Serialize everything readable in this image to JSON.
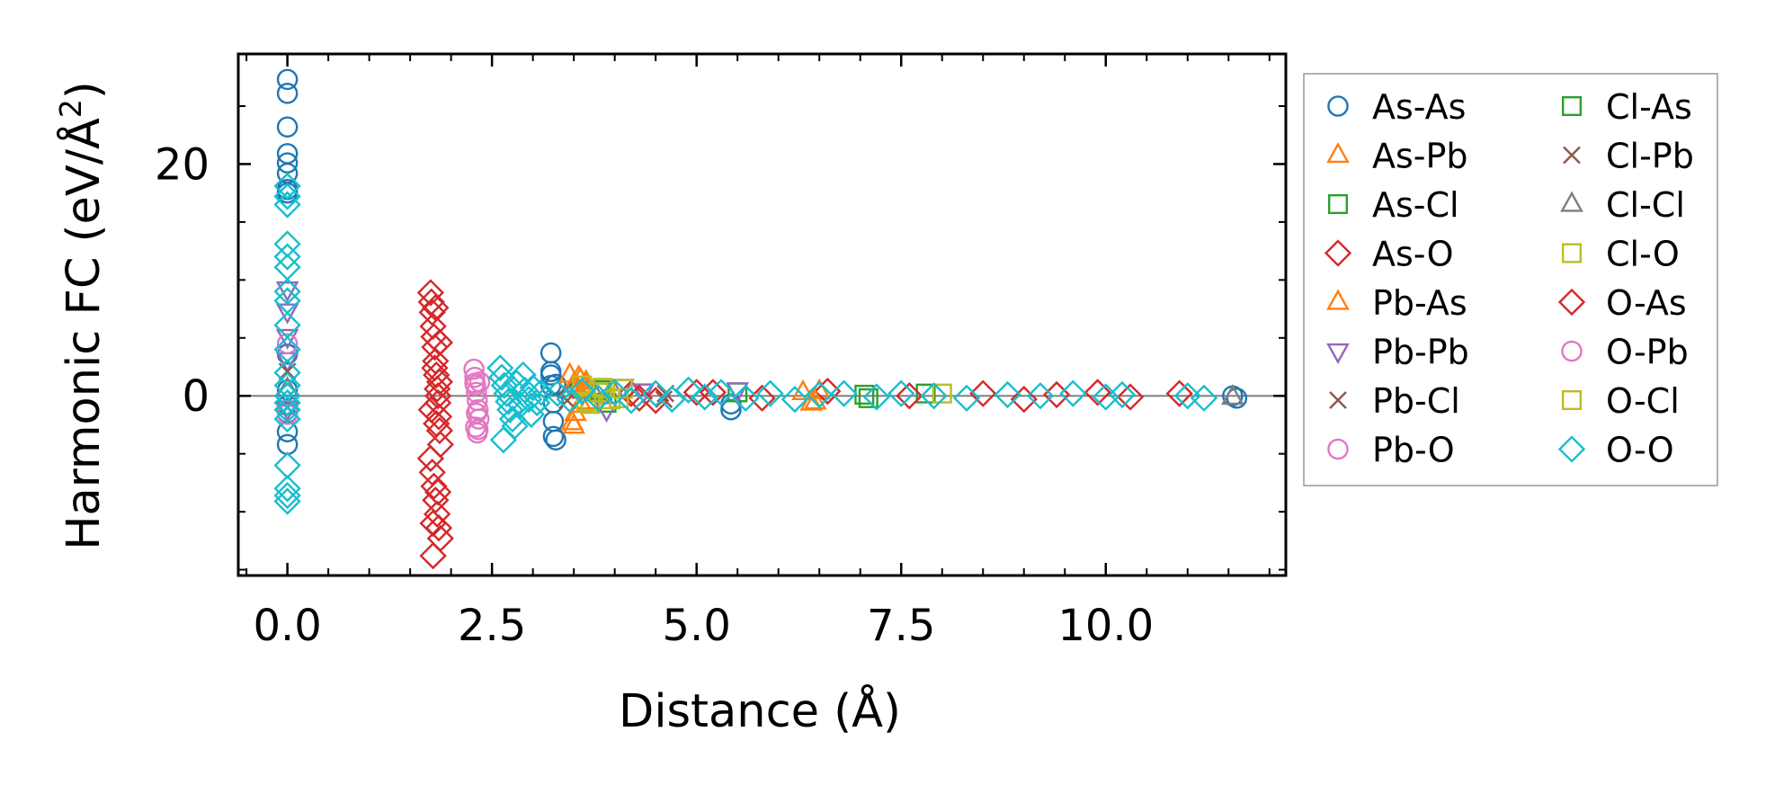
{
  "chart_data": {
    "type": "scatter",
    "xlabel": "Distance (Å)",
    "ylabel": "Harmonic FC (eV/Å²)",
    "ylabel_base": "Harmonic FC (eV/Å",
    "ylabel_sup": "2",
    "ylabel_end": ")",
    "xlim": [
      -0.6,
      12.2
    ],
    "ylim": [
      -15.5,
      29.5
    ],
    "xticks": [
      0.0,
      2.5,
      5.0,
      7.5,
      10.0
    ],
    "xtick_labels": [
      "0.0",
      "2.5",
      "5.0",
      "7.5",
      "10.0"
    ],
    "yticks": [
      0,
      20
    ],
    "ytick_labels": [
      "0",
      "20"
    ],
    "x_minor_step": 0.5,
    "y_minor_step": 5,
    "zero_line": true,
    "legend_location": "outside-right",
    "legend_columns": 2,
    "series": [
      {
        "name": "As-As",
        "marker": "circle",
        "color": "#1f77b4",
        "x": [
          0,
          0,
          0,
          0,
          0,
          0,
          0,
          0,
          0,
          0,
          0,
          0,
          0,
          0,
          3.22,
          3.22,
          3.22,
          3.22,
          3.25,
          3.25,
          3.25,
          3.28,
          3.28,
          5.42,
          5.42,
          11.55,
          11.6
        ],
        "y": [
          27.3,
          26.1,
          23.2,
          20.9,
          20.1,
          19.2,
          17.8,
          17.5,
          3.6,
          -1.5,
          -3.1,
          -4.2,
          0.5,
          -0.8,
          3.7,
          2.1,
          1.8,
          0.9,
          -0.6,
          -2.2,
          -3.5,
          -3.8,
          1.0,
          -1.2,
          -0.7,
          0.0,
          -0.2
        ]
      },
      {
        "name": "As-Pb",
        "marker": "triangle-up",
        "color": "#ff7f0e",
        "x": [
          3.45,
          3.5,
          3.5,
          3.52,
          3.55,
          3.58,
          3.6,
          3.62,
          3.65,
          3.7,
          6.3,
          6.4,
          6.5
        ],
        "y": [
          1.8,
          1.0,
          -2.6,
          -1.5,
          0.6,
          1.4,
          -0.8,
          0.4,
          1.2,
          -0.5,
          0.3,
          -0.6,
          0.4
        ]
      },
      {
        "name": "As-Cl",
        "marker": "square",
        "color": "#2ca02c",
        "x": [
          3.85,
          3.9,
          5.5,
          7.1,
          7.8
        ],
        "y": [
          0.5,
          -0.6,
          0.3,
          -0.2,
          0.2
        ]
      },
      {
        "name": "As-O",
        "marker": "diamond",
        "color": "#d62728",
        "x": [
          1.75,
          1.76,
          1.77,
          1.78,
          1.79,
          1.8,
          1.81,
          1.82,
          1.83,
          1.84,
          1.85,
          1.86,
          1.87,
          1.75,
          1.77,
          1.79,
          1.81,
          1.83,
          1.85,
          1.87,
          1.78,
          1.8,
          1.82,
          1.84,
          1.76,
          1.86,
          4.2,
          4.5,
          5.2,
          5.8,
          6.6,
          7.6,
          8.5,
          9.0,
          9.4,
          9.9,
          10.3,
          10.9
        ],
        "y": [
          8.9,
          8.1,
          7.2,
          6.0,
          5.1,
          4.2,
          3.0,
          1.8,
          0.6,
          -0.6,
          -1.8,
          -3.0,
          -4.2,
          -5.4,
          -6.6,
          -7.8,
          -9.0,
          -10.2,
          -11.4,
          -12.3,
          -13.8,
          2.4,
          -2.4,
          0.0,
          -1.2,
          1.2,
          0.2,
          -0.4,
          0.3,
          -0.2,
          0.4,
          0.0,
          0.2,
          -0.3,
          0.1,
          0.3,
          -0.1,
          0.2
        ]
      },
      {
        "name": "Pb-As",
        "marker": "triangle-up",
        "color": "#ff7f0e",
        "x": [
          3.48,
          3.56,
          3.64,
          6.45
        ],
        "y": [
          -2.3,
          1.6,
          0.9,
          -0.5
        ]
      },
      {
        "name": "Pb-Pb",
        "marker": "triangle-down",
        "color": "#9467bd",
        "x": [
          0,
          0,
          0,
          0,
          0,
          3.9,
          4.1,
          4.35,
          5.5
        ],
        "y": [
          9.2,
          7.3,
          5.1,
          3.1,
          -1.1,
          -1.2,
          0.8,
          0.4,
          0.5
        ]
      },
      {
        "name": "Pb-Cl",
        "marker": "x",
        "color": "#8c564b",
        "x": [
          0,
          0,
          3.4,
          4.6
        ],
        "y": [
          2.1,
          -1.0,
          0.5,
          -0.3
        ]
      },
      {
        "name": "Pb-O",
        "marker": "circle",
        "color": "#e377c2",
        "x": [
          2.28,
          2.29,
          2.3,
          2.31,
          2.32,
          2.33,
          2.34,
          2.3,
          2.32,
          2.35,
          0,
          0
        ],
        "y": [
          2.3,
          1.6,
          0.9,
          0.3,
          -0.4,
          -1.2,
          -2.0,
          -2.7,
          -3.2,
          1.2,
          4.5,
          -1.6
        ]
      },
      {
        "name": "Cl-As",
        "marker": "square",
        "color": "#2ca02c",
        "x": [
          3.82,
          7.05
        ],
        "y": [
          0.3,
          0.1
        ]
      },
      {
        "name": "Cl-Pb",
        "marker": "x",
        "color": "#8c564b",
        "x": [
          3.42,
          4.62
        ],
        "y": [
          -0.4,
          0.2
        ]
      },
      {
        "name": "Cl-Cl",
        "marker": "triangle-up",
        "color": "#7f7f7f",
        "x": [
          0,
          3.75,
          11.55
        ],
        "y": [
          0.6,
          0.2,
          -0.1
        ]
      },
      {
        "name": "Cl-O",
        "marker": "square",
        "color": "#bcbd22",
        "x": [
          3.6,
          3.7,
          3.8,
          3.95,
          4.1,
          8.0
        ],
        "y": [
          0.9,
          -0.7,
          0.3,
          -0.3,
          0.6,
          0.2
        ]
      },
      {
        "name": "O-As",
        "marker": "diamond",
        "color": "#d62728",
        "x": [
          1.78,
          1.81,
          1.84,
          1.86,
          4.3,
          5.0
        ],
        "y": [
          -11.0,
          7.6,
          -8.3,
          4.6,
          -0.2,
          0.3
        ]
      },
      {
        "name": "O-Pb",
        "marker": "circle",
        "color": "#e377c2",
        "x": [
          2.29,
          2.31,
          2.33
        ],
        "y": [
          1.1,
          -1.5,
          -2.9
        ]
      },
      {
        "name": "O-Cl",
        "marker": "square",
        "color": "#bcbd22",
        "x": [
          3.65,
          3.85,
          4.05
        ],
        "y": [
          -0.5,
          0.7,
          -0.2
        ]
      },
      {
        "name": "O-O",
        "marker": "diamond",
        "color": "#17becf",
        "x": [
          0,
          0,
          0,
          0,
          0,
          0,
          0,
          0,
          0,
          0,
          0,
          0,
          0,
          0,
          0,
          0,
          0,
          0,
          0,
          0,
          2.6,
          2.62,
          2.65,
          2.68,
          2.7,
          2.72,
          2.75,
          2.8,
          2.85,
          2.9,
          2.95,
          3.0,
          3.05,
          3.1,
          2.64,
          2.78,
          2.88,
          2.98,
          3.3,
          3.45,
          3.6,
          3.8,
          4.0,
          4.2,
          4.5,
          4.7,
          4.9,
          5.1,
          5.3,
          5.6,
          5.9,
          6.2,
          6.5,
          6.8,
          7.2,
          7.5,
          7.9,
          8.3,
          8.8,
          9.2,
          9.6,
          10.0,
          10.2,
          11.0,
          11.2
        ],
        "y": [
          18.1,
          17.2,
          16.5,
          13.1,
          12.0,
          11.1,
          9.0,
          8.2,
          6.1,
          4.0,
          2.0,
          0.9,
          0.0,
          -0.6,
          -1.2,
          -2.0,
          -6.0,
          -8.0,
          -8.6,
          -9.1,
          2.4,
          1.6,
          0.9,
          0.2,
          -0.5,
          -1.2,
          -2.0,
          1.1,
          -0.8,
          0.5,
          -0.3,
          0.7,
          -0.6,
          0.3,
          -3.8,
          -2.6,
          1.8,
          -1.6,
          0.2,
          -0.3,
          0.4,
          -0.2,
          0.3,
          -0.4,
          0.2,
          -0.3,
          0.5,
          -0.1,
          0.3,
          -0.2,
          0.2,
          -0.3,
          0.1,
          0.2,
          -0.1,
          0.2,
          0.0,
          -0.2,
          0.1,
          0.0,
          0.2,
          -0.1,
          0.1,
          0.0,
          -0.2
        ]
      }
    ]
  }
}
